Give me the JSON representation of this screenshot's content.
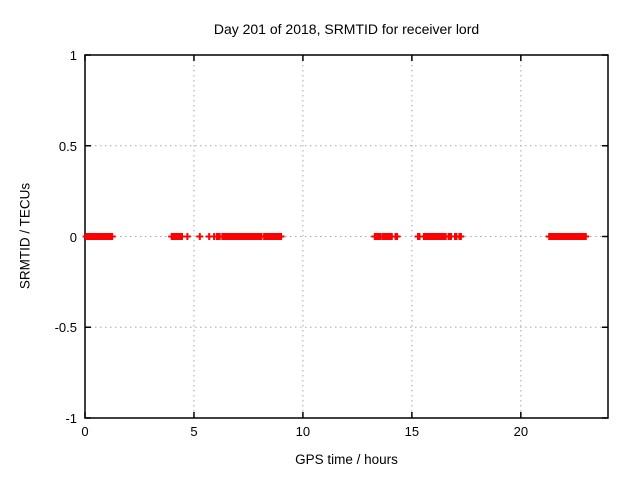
{
  "chart_data": {
    "type": "scatter",
    "title": "Day 201 of 2018, SRMTID for receiver lord",
    "xlabel": "GPS time / hours",
    "ylabel": "SRMTID / TECUs",
    "xlim": [
      0,
      24
    ],
    "ylim": [
      -1,
      1
    ],
    "xticks": {
      "values": [
        0,
        5,
        10,
        15,
        20
      ],
      "labels": [
        "0",
        "5",
        "10",
        "15",
        "20"
      ]
    },
    "yticks": {
      "values": [
        1,
        0.5,
        0,
        -0.5,
        -1
      ],
      "labels": [
        "1",
        "0.5",
        "0",
        "-0.5",
        "-1"
      ]
    },
    "grid": true,
    "legend": "none",
    "marker": {
      "shape": "plus",
      "color": "#ff0000",
      "size": 7
    },
    "colors": {
      "axis": "#000000",
      "grid": "#a8a8a8",
      "data": "#ff0000",
      "background": "#ffffff",
      "text": "#000000"
    },
    "series": [
      {
        "name": "SRMTID",
        "y": 0,
        "segments_hours": [
          [
            0.05,
            1.25
          ],
          [
            3.98,
            4.18
          ],
          [
            4.25,
            4.45
          ],
          [
            4.7,
            4.7
          ],
          [
            5.27,
            5.27
          ],
          [
            5.7,
            5.7
          ],
          [
            5.9,
            5.95
          ],
          [
            6.05,
            6.18
          ],
          [
            6.3,
            8.1
          ],
          [
            8.22,
            9.0
          ],
          [
            13.3,
            13.55
          ],
          [
            13.65,
            13.88
          ],
          [
            13.95,
            14.08
          ],
          [
            14.25,
            14.32
          ],
          [
            15.28,
            15.35
          ],
          [
            15.55,
            16.55
          ],
          [
            16.68,
            16.8
          ],
          [
            16.98,
            17.05
          ],
          [
            17.18,
            17.25
          ],
          [
            21.3,
            22.98
          ]
        ]
      }
    ]
  }
}
